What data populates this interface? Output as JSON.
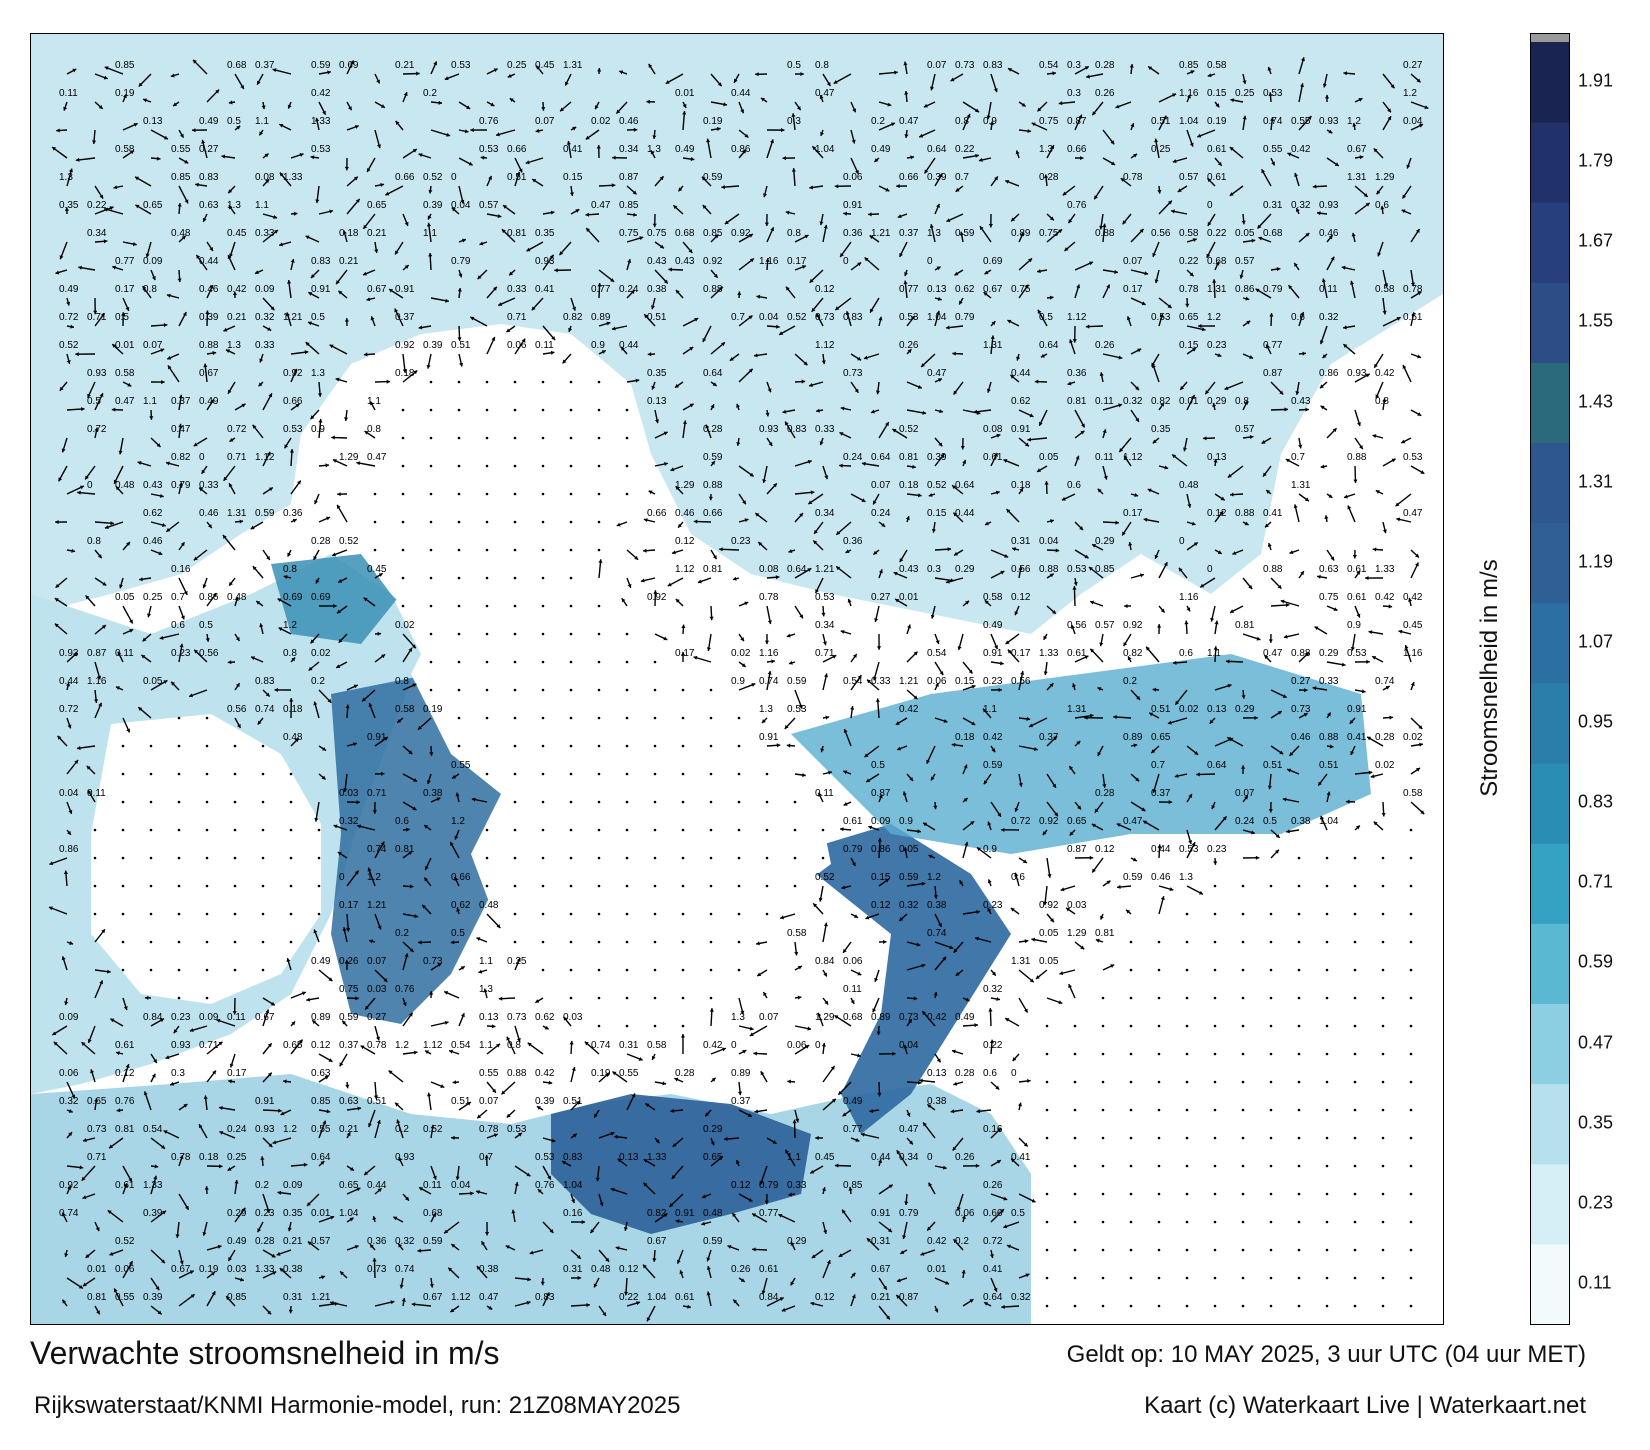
{
  "caption": {
    "title": "Verwachte stroomsnelheid in m/s",
    "model": "Rijkswaterstaat/KNMI Harmonie-model, run: 21Z08MAY2025",
    "valid": "Geldt op: 10 MAY 2025, 3 uur UTC (04 uur MET)",
    "credit": "Kaart (c) Waterkaart Live | Waterkaart.net"
  },
  "colorbar": {
    "title": "Stroomsnelheid in m/s",
    "ticks": [
      "0.11",
      "0.23",
      "0.35",
      "0.47",
      "0.59",
      "0.71",
      "0.83",
      "0.95",
      "1.07",
      "1.19",
      "1.31",
      "1.43",
      "1.55",
      "1.67",
      "1.79",
      "1.91"
    ],
    "colors": [
      "#f3fafc",
      "#d6eef5",
      "#b5e0ec",
      "#8ccfe2",
      "#5ab8d2",
      "#35a2c4",
      "#2a8db4",
      "#2b7daa",
      "#2c6fa3",
      "#2f5f95",
      "#2e578f",
      "#2b6a7c",
      "#2d4d86",
      "#273f7c",
      "#21326b",
      "#1a2452"
    ]
  },
  "map_labels": [
    "0.23",
    "0.19",
    "0.17",
    "0.13",
    "0.24",
    "0.26",
    "0.12",
    "0.15",
    "0.11",
    "0.18",
    "0.16",
    "0.28",
    "0.29",
    "0.21",
    "0.3",
    "0.31",
    "0.25",
    "0.27",
    "0.22",
    "0.2",
    "0.09",
    "0.07",
    "0.08",
    "0.06",
    "0.05",
    "0.04",
    "0.03",
    "0.02",
    "0.01",
    "0",
    "0.32",
    "0.36",
    "0.37",
    "0.38",
    "0.34",
    "0.35",
    "0.33",
    "0.42",
    "0.44",
    "0.41",
    "0.39",
    "0.43",
    "0.45",
    "0.46",
    "0.47",
    "0.48",
    "0.49",
    "0.5",
    "0.51",
    "0.52",
    "0.53",
    "0.54",
    "0.55",
    "0.56",
    "0.57",
    "0.58",
    "0.59",
    "0.6",
    "0.61",
    "0.62",
    "0.63",
    "0.64",
    "0.65",
    "0.66",
    "0.67",
    "0.68",
    "0.69",
    "0.7",
    "0.71",
    "0.72",
    "0.73",
    "0.74",
    "0.75",
    "0.76",
    "0.77",
    "0.78",
    "0.79",
    "0.8",
    "0.81",
    "0.82",
    "0.83",
    "0.84",
    "0.85",
    "0.86",
    "0.87",
    "0.88",
    "0.89",
    "0.9",
    "0.91",
    "0.92",
    "0.93",
    "1.04",
    "1.1",
    "1.12",
    "1.16",
    "1.2",
    "1.21",
    "1.29",
    "1.3",
    "1.31",
    "1.33"
  ]
}
